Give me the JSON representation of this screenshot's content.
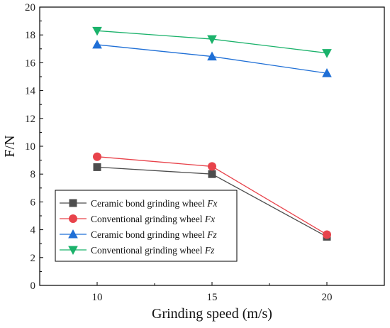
{
  "chart_data": {
    "type": "line",
    "xlabel": "Grinding speed (m/s)",
    "ylabel": "F/N",
    "x": [
      10,
      15,
      20
    ],
    "xticks": [
      "10",
      "15",
      "20"
    ],
    "xlim": [
      7.5,
      22.5
    ],
    "ylim": [
      0,
      20
    ],
    "yticks": [
      "0",
      "2",
      "4",
      "6",
      "8",
      "10",
      "12",
      "14",
      "16",
      "18",
      "20"
    ],
    "grid": false,
    "legend_position": "bottom-left",
    "series": [
      {
        "name": "Ceramic bond grinding wheel",
        "name_suffix": "Fx",
        "marker": "square",
        "color": "#4d4d4d",
        "values": [
          8.5,
          8.0,
          3.5
        ]
      },
      {
        "name": "Conventional grinding wheel",
        "name_suffix": "Fx",
        "marker": "circle",
        "color": "#e8434b",
        "values": [
          9.25,
          8.55,
          3.65
        ]
      },
      {
        "name": "Ceramic bond grinding wheel",
        "name_suffix": "Fz",
        "marker": "triangle-up",
        "color": "#1f6fd6",
        "values": [
          17.3,
          16.45,
          15.25
        ]
      },
      {
        "name": "Conventional grinding wheel",
        "name_suffix": "Fz",
        "marker": "triangle-down",
        "color": "#1bb26b",
        "values": [
          18.3,
          17.7,
          16.7
        ]
      }
    ]
  }
}
